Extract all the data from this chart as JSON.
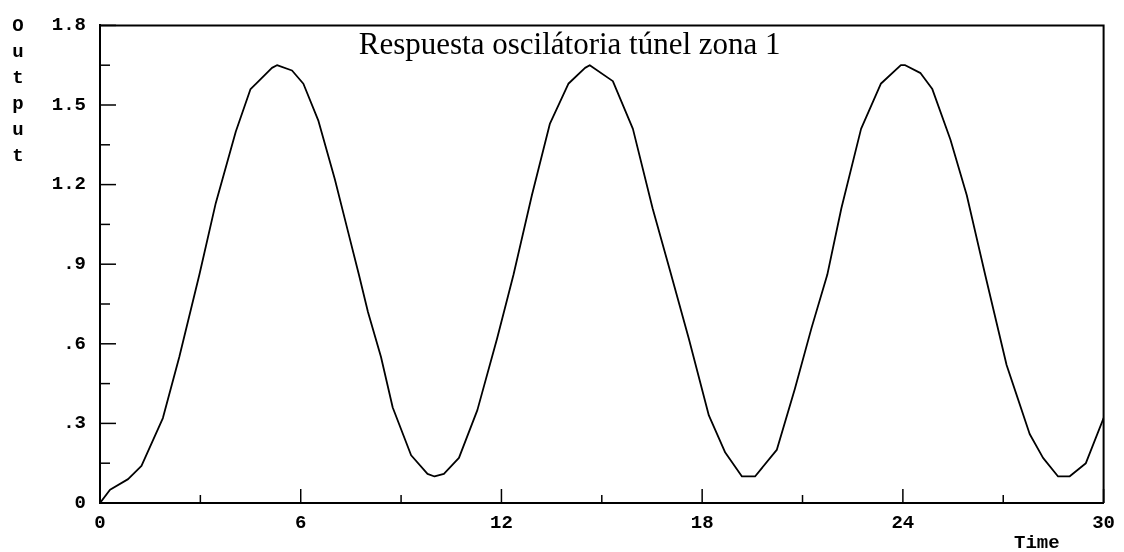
{
  "chart_data": {
    "type": "line",
    "title": "Respuesta oscilátoria túnel zona 1",
    "xlabel": "Time",
    "ylabel": "Output",
    "x": [
      0,
      0.3,
      0.84,
      1.24,
      1.88,
      2.37,
      2.97,
      3.46,
      4.06,
      4.5,
      5.14,
      5.29,
      5.74,
      6.08,
      6.53,
      7.02,
      7.42,
      7.74,
      8.01,
      8.4,
      8.75,
      9.3,
      9.79,
      10.0,
      10.28,
      10.73,
      11.28,
      11.87,
      12.36,
      12.91,
      13.45,
      14.0,
      14.5,
      14.64,
      15.33,
      15.93,
      16.52,
      17.03,
      17.6,
      18.2,
      18.69,
      19.19,
      19.4,
      19.58,
      20.23,
      20.77,
      21.27,
      21.74,
      22.16,
      22.75,
      23.34,
      23.94,
      24.07,
      24.53,
      24.88,
      25.42,
      25.91,
      26.46,
      27.1,
      27.79,
      28.19,
      28.64,
      28.98,
      29.47,
      30
    ],
    "values": [
      0,
      0.05,
      0.09,
      0.14,
      0.32,
      0.55,
      0.86,
      1.13,
      1.4,
      1.56,
      1.64,
      1.65,
      1.63,
      1.58,
      1.44,
      1.22,
      1.02,
      0.86,
      0.72,
      0.55,
      0.36,
      0.18,
      0.11,
      0.1,
      0.11,
      0.17,
      0.35,
      0.62,
      0.86,
      1.16,
      1.43,
      1.58,
      1.64,
      1.65,
      1.59,
      1.41,
      1.11,
      0.88,
      0.62,
      0.33,
      0.19,
      0.1,
      0.1,
      0.1,
      0.2,
      0.43,
      0.66,
      0.86,
      1.11,
      1.41,
      1.58,
      1.65,
      1.65,
      1.62,
      1.56,
      1.37,
      1.16,
      0.86,
      0.52,
      0.26,
      0.17,
      0.1,
      0.1,
      0.15,
      0.32
    ],
    "color": "#000000",
    "xlim": [
      0,
      30
    ],
    "ylim": [
      0,
      1.8
    ],
    "xticks": [
      0,
      {
        "value": 3,
        "label": null
      },
      6,
      {
        "value": 9,
        "label": null
      },
      12,
      {
        "value": 15,
        "label": null
      },
      18,
      {
        "value": 21,
        "label": null
      },
      24,
      {
        "value": 27,
        "label": null
      },
      30
    ],
    "yticks": [
      0,
      {
        "value": 0.15,
        "label": null
      },
      {
        "value": 0.3,
        "label": ".3"
      },
      {
        "value": 0.45,
        "label": null
      },
      {
        "value": 0.6,
        "label": ".6"
      },
      {
        "value": 0.75,
        "label": null
      },
      {
        "value": 0.9,
        "label": ".9"
      },
      {
        "value": 1.05,
        "label": null
      },
      1.2,
      {
        "value": 1.35,
        "label": null
      },
      1.5,
      {
        "value": 1.65,
        "label": null
      },
      1.8
    ]
  }
}
